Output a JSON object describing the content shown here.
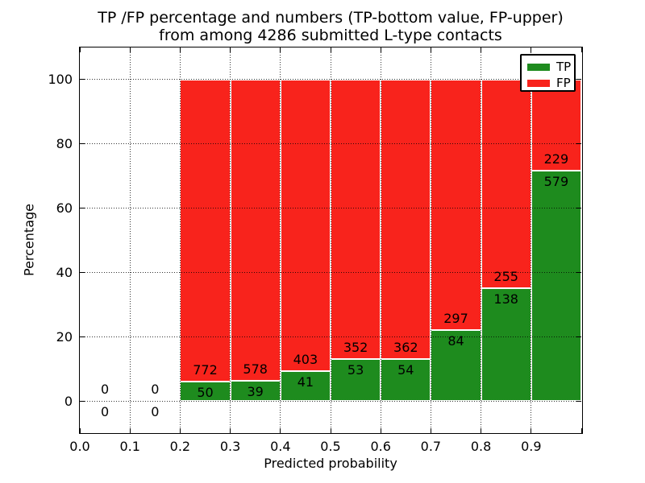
{
  "figure": {
    "title_line1": "TP /FP percentage and numbers (TP-bottom value, FP-upper)",
    "title_line2": "from among 4286 submitted L-type contacts",
    "xlabel": "Predicted probability",
    "ylabel": "Percentage"
  },
  "legend": {
    "items": [
      {
        "label": "TP",
        "color": "#1e8b1e"
      },
      {
        "label": "FP",
        "color": "#f8231c"
      }
    ]
  },
  "chart_data": {
    "type": "bar",
    "stacked": true,
    "note": "stacked percentage bars; labels show raw counts (TP bottom value, FP upper value)",
    "title": "TP /FP percentage and numbers (TP-bottom value, FP-upper)\nfrom among 4286 submitted L-type contacts",
    "xlabel": "Predicted probability",
    "ylabel": "Percentage",
    "total_contacts": 4286,
    "bin_width": 0.1,
    "bin_starts": [
      0.0,
      0.1,
      0.2,
      0.3,
      0.4,
      0.5,
      0.6,
      0.7,
      0.8,
      0.9
    ],
    "series": [
      {
        "name": "TP",
        "color": "#1e8b1e",
        "counts": [
          0,
          0,
          50,
          39,
          41,
          53,
          54,
          84,
          138,
          579
        ]
      },
      {
        "name": "FP",
        "color": "#f8231c",
        "counts": [
          0,
          0,
          772,
          578,
          403,
          352,
          362,
          297,
          255,
          229
        ]
      }
    ],
    "x_tick_labels": [
      "0.0",
      "0.1",
      "0.2",
      "0.3",
      "0.4",
      "0.5",
      "0.6",
      "0.7",
      "0.8",
      "0.9"
    ],
    "y_ticks": [
      0,
      20,
      40,
      60,
      80,
      100
    ],
    "xlim": [
      0.0,
      1.0
    ],
    "ylim": [
      -10,
      110
    ],
    "grid": "dotted",
    "legend_position": "upper right"
  }
}
